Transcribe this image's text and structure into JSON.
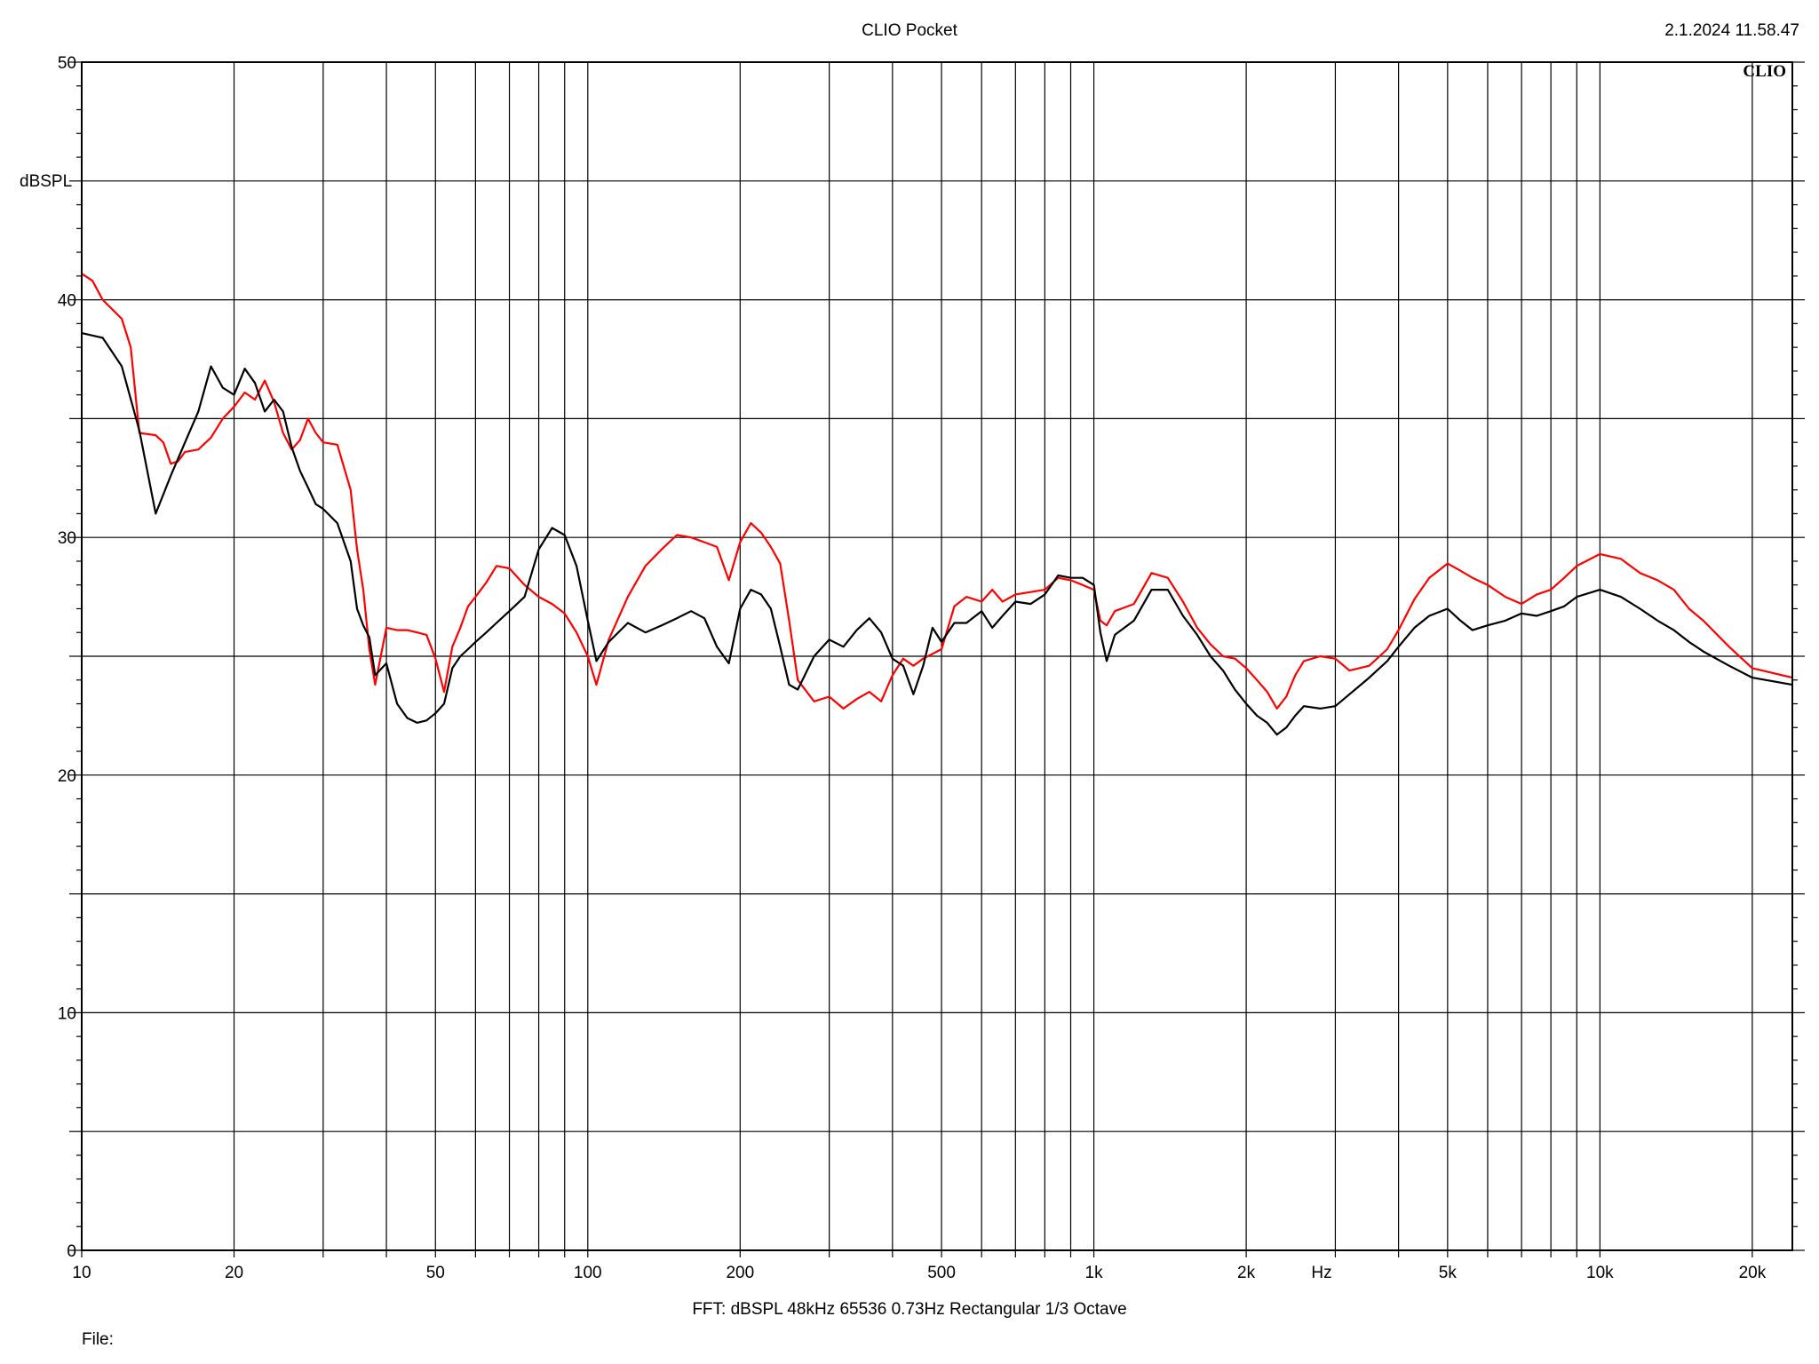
{
  "header": {
    "title": "CLIO Pocket",
    "timestamp": "2.1.2024 11.58.47",
    "logo": "CLIO"
  },
  "footer": {
    "settings": "FFT:  dBSPL  48kHz   65536  0.73Hz  Rectangular  1/3 Octave",
    "file_label": "File:"
  },
  "chart_data": {
    "type": "line",
    "title": "CLIO Pocket",
    "ylabel": "dBSPL",
    "xlabel": "Hz",
    "x_scale": "log",
    "xlim": [
      10,
      24000
    ],
    "ylim": [
      0,
      50
    ],
    "grid": true,
    "x_ticks": [
      {
        "value": 10,
        "label": "10"
      },
      {
        "value": 20,
        "label": "20"
      },
      {
        "value": 50,
        "label": "50"
      },
      {
        "value": 100,
        "label": "100"
      },
      {
        "value": 200,
        "label": "200"
      },
      {
        "value": 500,
        "label": "500"
      },
      {
        "value": 1000,
        "label": "1k"
      },
      {
        "value": 2000,
        "label": "2k"
      },
      {
        "value": 5000,
        "label": "5k"
      },
      {
        "value": 10000,
        "label": "10k"
      },
      {
        "value": 20000,
        "label": "20k"
      }
    ],
    "y_ticks": [
      0,
      10,
      20,
      30,
      40,
      50
    ],
    "series": [
      {
        "color": "#000000",
        "points": [
          [
            10,
            38.6
          ],
          [
            11,
            38.4
          ],
          [
            12,
            37.2
          ],
          [
            13,
            34.5
          ],
          [
            14,
            31.0
          ],
          [
            15,
            32.6
          ],
          [
            16,
            34.0
          ],
          [
            17,
            35.3
          ],
          [
            18,
            37.2
          ],
          [
            19,
            36.3
          ],
          [
            20,
            36.0
          ],
          [
            21,
            37.1
          ],
          [
            22,
            36.5
          ],
          [
            23,
            35.3
          ],
          [
            24,
            35.8
          ],
          [
            25,
            35.3
          ],
          [
            26,
            33.8
          ],
          [
            27,
            32.8
          ],
          [
            28,
            32.1
          ],
          [
            29,
            31.4
          ],
          [
            30,
            31.2
          ],
          [
            32,
            30.6
          ],
          [
            34,
            29.0
          ],
          [
            35,
            27.0
          ],
          [
            36,
            26.3
          ],
          [
            37,
            25.8
          ],
          [
            38,
            24.2
          ],
          [
            40,
            24.7
          ],
          [
            42,
            23.0
          ],
          [
            44,
            22.4
          ],
          [
            46,
            22.2
          ],
          [
            48,
            22.3
          ],
          [
            50,
            22.6
          ],
          [
            52,
            23.0
          ],
          [
            54,
            24.5
          ],
          [
            56,
            25.0
          ],
          [
            58,
            25.3
          ],
          [
            60,
            25.6
          ],
          [
            63,
            26.0
          ],
          [
            66,
            26.4
          ],
          [
            70,
            26.9
          ],
          [
            75,
            27.5
          ],
          [
            80,
            29.5
          ],
          [
            85,
            30.4
          ],
          [
            90,
            30.1
          ],
          [
            95,
            28.8
          ],
          [
            100,
            26.5
          ],
          [
            104,
            24.8
          ],
          [
            110,
            25.6
          ],
          [
            120,
            26.4
          ],
          [
            130,
            26.0
          ],
          [
            140,
            26.3
          ],
          [
            150,
            26.6
          ],
          [
            160,
            26.9
          ],
          [
            170,
            26.6
          ],
          [
            180,
            25.4
          ],
          [
            190,
            24.7
          ],
          [
            200,
            27.0
          ],
          [
            210,
            27.8
          ],
          [
            220,
            27.6
          ],
          [
            230,
            27.0
          ],
          [
            240,
            25.4
          ],
          [
            250,
            23.8
          ],
          [
            260,
            23.6
          ],
          [
            280,
            25.0
          ],
          [
            300,
            25.7
          ],
          [
            320,
            25.4
          ],
          [
            340,
            26.1
          ],
          [
            360,
            26.6
          ],
          [
            380,
            26.0
          ],
          [
            400,
            24.9
          ],
          [
            420,
            24.6
          ],
          [
            440,
            23.4
          ],
          [
            460,
            24.6
          ],
          [
            480,
            26.2
          ],
          [
            500,
            25.6
          ],
          [
            530,
            26.4
          ],
          [
            560,
            26.4
          ],
          [
            600,
            26.9
          ],
          [
            630,
            26.2
          ],
          [
            660,
            26.7
          ],
          [
            700,
            27.3
          ],
          [
            750,
            27.2
          ],
          [
            800,
            27.6
          ],
          [
            850,
            28.4
          ],
          [
            900,
            28.3
          ],
          [
            950,
            28.3
          ],
          [
            1000,
            28.0
          ],
          [
            1030,
            26.0
          ],
          [
            1060,
            24.8
          ],
          [
            1100,
            25.9
          ],
          [
            1200,
            26.5
          ],
          [
            1300,
            27.8
          ],
          [
            1400,
            27.8
          ],
          [
            1500,
            26.7
          ],
          [
            1600,
            25.9
          ],
          [
            1700,
            25.0
          ],
          [
            1800,
            24.4
          ],
          [
            1900,
            23.6
          ],
          [
            2000,
            23.0
          ],
          [
            2100,
            22.5
          ],
          [
            2200,
            22.2
          ],
          [
            2300,
            21.7
          ],
          [
            2400,
            22.0
          ],
          [
            2500,
            22.5
          ],
          [
            2600,
            22.9
          ],
          [
            2800,
            22.8
          ],
          [
            3000,
            22.9
          ],
          [
            3200,
            23.4
          ],
          [
            3500,
            24.1
          ],
          [
            3800,
            24.8
          ],
          [
            4000,
            25.4
          ],
          [
            4300,
            26.2
          ],
          [
            4600,
            26.7
          ],
          [
            5000,
            27.0
          ],
          [
            5300,
            26.5
          ],
          [
            5600,
            26.1
          ],
          [
            6000,
            26.3
          ],
          [
            6500,
            26.5
          ],
          [
            7000,
            26.8
          ],
          [
            7500,
            26.7
          ],
          [
            8000,
            26.9
          ],
          [
            8500,
            27.1
          ],
          [
            9000,
            27.5
          ],
          [
            10000,
            27.8
          ],
          [
            11000,
            27.5
          ],
          [
            12000,
            27.0
          ],
          [
            13000,
            26.5
          ],
          [
            14000,
            26.1
          ],
          [
            15000,
            25.6
          ],
          [
            16000,
            25.2
          ],
          [
            18000,
            24.6
          ],
          [
            20000,
            24.1
          ],
          [
            24000,
            23.8
          ]
        ]
      },
      {
        "color": "#ff0000",
        "points": [
          [
            10,
            41.1
          ],
          [
            10.5,
            40.8
          ],
          [
            11,
            40.0
          ],
          [
            12,
            39.2
          ],
          [
            12.5,
            38.0
          ],
          [
            13,
            34.4
          ],
          [
            14,
            34.3
          ],
          [
            14.5,
            34.0
          ],
          [
            15,
            33.1
          ],
          [
            15.5,
            33.2
          ],
          [
            16,
            33.6
          ],
          [
            17,
            33.7
          ],
          [
            18,
            34.2
          ],
          [
            19,
            35.0
          ],
          [
            20,
            35.5
          ],
          [
            21,
            36.1
          ],
          [
            22,
            35.8
          ],
          [
            23,
            36.6
          ],
          [
            24,
            35.7
          ],
          [
            25,
            34.4
          ],
          [
            26,
            33.7
          ],
          [
            27,
            34.1
          ],
          [
            28,
            35.0
          ],
          [
            29,
            34.4
          ],
          [
            30,
            34.0
          ],
          [
            32,
            33.9
          ],
          [
            34,
            32.0
          ],
          [
            35,
            29.5
          ],
          [
            36,
            27.8
          ],
          [
            37,
            25.3
          ],
          [
            38,
            23.8
          ],
          [
            40,
            26.2
          ],
          [
            42,
            26.1
          ],
          [
            44,
            26.1
          ],
          [
            46,
            26.0
          ],
          [
            48,
            25.9
          ],
          [
            50,
            24.9
          ],
          [
            52,
            23.5
          ],
          [
            54,
            25.4
          ],
          [
            56,
            26.2
          ],
          [
            58,
            27.1
          ],
          [
            60,
            27.5
          ],
          [
            63,
            28.1
          ],
          [
            66,
            28.8
          ],
          [
            70,
            28.7
          ],
          [
            75,
            28.0
          ],
          [
            80,
            27.5
          ],
          [
            85,
            27.2
          ],
          [
            90,
            26.8
          ],
          [
            95,
            26.0
          ],
          [
            100,
            25.0
          ],
          [
            104,
            23.8
          ],
          [
            110,
            25.7
          ],
          [
            120,
            27.5
          ],
          [
            130,
            28.8
          ],
          [
            140,
            29.5
          ],
          [
            150,
            30.1
          ],
          [
            160,
            30.0
          ],
          [
            170,
            29.8
          ],
          [
            180,
            29.6
          ],
          [
            190,
            28.2
          ],
          [
            200,
            29.8
          ],
          [
            210,
            30.6
          ],
          [
            220,
            30.2
          ],
          [
            230,
            29.6
          ],
          [
            240,
            28.9
          ],
          [
            250,
            26.5
          ],
          [
            260,
            24.0
          ],
          [
            280,
            23.1
          ],
          [
            300,
            23.3
          ],
          [
            320,
            22.8
          ],
          [
            340,
            23.2
          ],
          [
            360,
            23.5
          ],
          [
            380,
            23.1
          ],
          [
            400,
            24.2
          ],
          [
            420,
            24.9
          ],
          [
            440,
            24.6
          ],
          [
            460,
            24.9
          ],
          [
            480,
            25.1
          ],
          [
            500,
            25.3
          ],
          [
            530,
            27.1
          ],
          [
            560,
            27.5
          ],
          [
            600,
            27.3
          ],
          [
            630,
            27.8
          ],
          [
            660,
            27.3
          ],
          [
            700,
            27.6
          ],
          [
            750,
            27.7
          ],
          [
            800,
            27.8
          ],
          [
            850,
            28.3
          ],
          [
            900,
            28.2
          ],
          [
            950,
            28.0
          ],
          [
            1000,
            27.8
          ],
          [
            1030,
            26.5
          ],
          [
            1060,
            26.3
          ],
          [
            1100,
            26.9
          ],
          [
            1200,
            27.2
          ],
          [
            1300,
            28.5
          ],
          [
            1400,
            28.3
          ],
          [
            1500,
            27.3
          ],
          [
            1600,
            26.2
          ],
          [
            1700,
            25.5
          ],
          [
            1800,
            25.0
          ],
          [
            1900,
            24.9
          ],
          [
            2000,
            24.5
          ],
          [
            2100,
            24.0
          ],
          [
            2200,
            23.5
          ],
          [
            2300,
            22.8
          ],
          [
            2400,
            23.3
          ],
          [
            2500,
            24.2
          ],
          [
            2600,
            24.8
          ],
          [
            2800,
            25.0
          ],
          [
            3000,
            24.9
          ],
          [
            3200,
            24.4
          ],
          [
            3500,
            24.6
          ],
          [
            3800,
            25.3
          ],
          [
            4000,
            26.1
          ],
          [
            4300,
            27.4
          ],
          [
            4600,
            28.3
          ],
          [
            5000,
            28.9
          ],
          [
            5300,
            28.6
          ],
          [
            5600,
            28.3
          ],
          [
            6000,
            28.0
          ],
          [
            6500,
            27.5
          ],
          [
            7000,
            27.2
          ],
          [
            7500,
            27.6
          ],
          [
            8000,
            27.8
          ],
          [
            8500,
            28.3
          ],
          [
            9000,
            28.8
          ],
          [
            10000,
            29.3
          ],
          [
            11000,
            29.1
          ],
          [
            12000,
            28.5
          ],
          [
            13000,
            28.2
          ],
          [
            14000,
            27.8
          ],
          [
            15000,
            27.0
          ],
          [
            16000,
            26.5
          ],
          [
            18000,
            25.4
          ],
          [
            20000,
            24.5
          ],
          [
            24000,
            24.1
          ]
        ]
      }
    ]
  }
}
